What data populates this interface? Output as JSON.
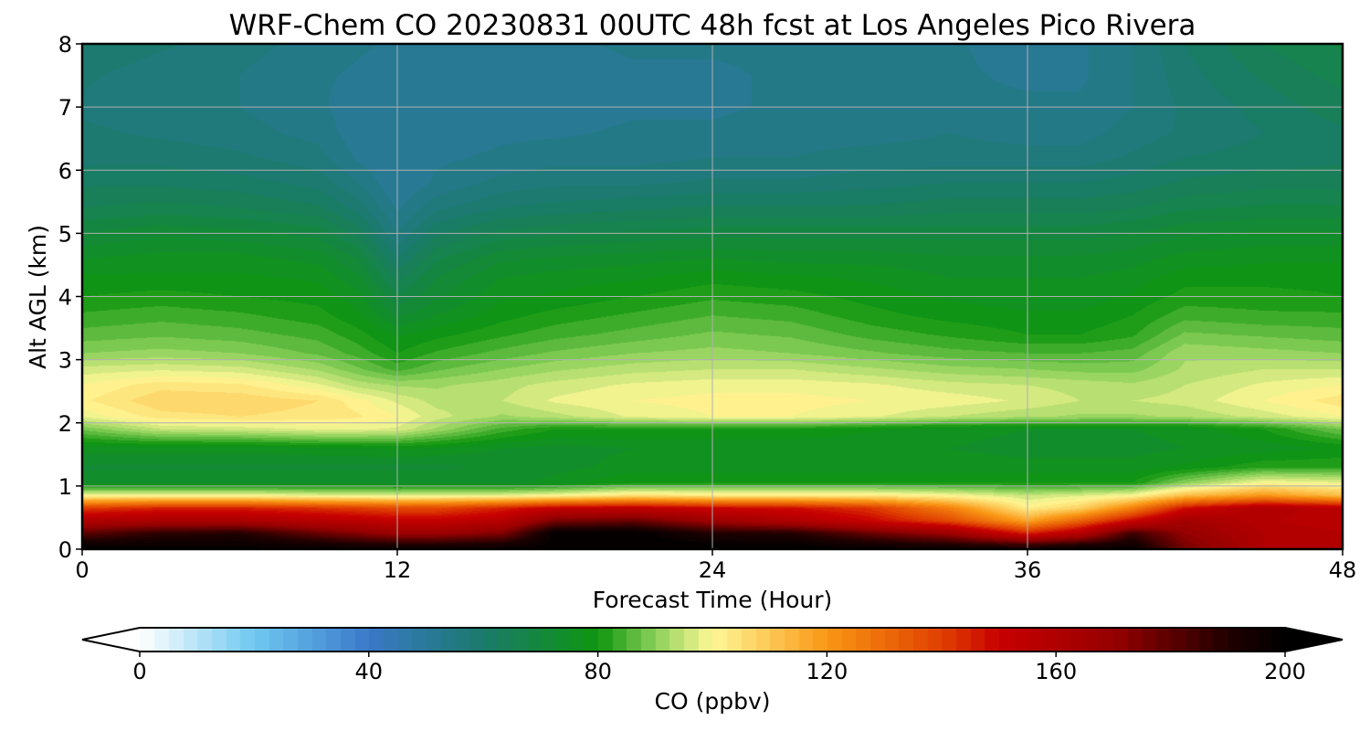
{
  "chart_data": {
    "type": "heatmap",
    "title": "WRF-Chem CO  20230831 00UTC 48h fcst at Los Angeles Pico Rivera",
    "xlabel": "Forecast Time (Hour)",
    "ylabel": "Alt AGL (km)",
    "xlim": [
      0,
      48
    ],
    "ylim": [
      0,
      8
    ],
    "xticks": [
      "0",
      "12",
      "24",
      "36",
      "48"
    ],
    "yticks": [
      "0",
      "1",
      "2",
      "3",
      "4",
      "5",
      "6",
      "7",
      "8"
    ],
    "grid": true,
    "colorbar": {
      "label": "CO  (ppbv)",
      "range": [
        0,
        200
      ],
      "ticks": [
        "0",
        "40",
        "80",
        "120",
        "160",
        "200"
      ],
      "extend": "both",
      "colors": {
        "0": "#ffffff",
        "20": "#6ec8f0",
        "40": "#3a78c8",
        "60": "#1a7a6a",
        "80": "#0f960f",
        "90": "#8cd05a",
        "100": "#fff896",
        "120": "#fa9614",
        "140": "#e04000",
        "150": "#c80000",
        "170": "#960000",
        "190": "#200000",
        "200": "#000000"
      }
    },
    "x_hours": [
      0,
      3,
      6,
      9,
      10.5,
      12,
      13.5,
      16,
      18,
      21,
      24,
      27,
      30,
      33,
      36,
      38,
      40,
      42,
      45,
      48
    ],
    "alt_km": [
      0.05,
      0.25,
      0.45,
      0.65,
      0.85,
      1.05,
      1.3,
      1.6,
      1.9,
      2.1,
      2.35,
      2.6,
      2.85,
      3.1,
      3.4,
      3.7,
      4.0,
      4.3,
      4.6,
      5.0,
      5.4,
      5.8,
      6.2,
      6.6,
      7.0,
      7.5,
      8.0
    ],
    "co_ppbv": [
      [
        198,
        198,
        198,
        196,
        194,
        193,
        193,
        195,
        199,
        200,
        200,
        199,
        196,
        193,
        189,
        193,
        196,
        175,
        160,
        158
      ],
      [
        180,
        188,
        190,
        178,
        173,
        168,
        168,
        174,
        199,
        200,
        190,
        190,
        178,
        168,
        145,
        158,
        185,
        170,
        160,
        158
      ],
      [
        160,
        162,
        162,
        157,
        155,
        152,
        152,
        157,
        175,
        178,
        167,
        160,
        150,
        138,
        117,
        132,
        150,
        165,
        158,
        155
      ],
      [
        140,
        145,
        145,
        142,
        140,
        138,
        138,
        145,
        152,
        154,
        150,
        148,
        142,
        125,
        102,
        108,
        125,
        148,
        160,
        155
      ],
      [
        100,
        100,
        100,
        98,
        98,
        97,
        98,
        98,
        100,
        105,
        103,
        103,
        103,
        100,
        95,
        97,
        100,
        112,
        120,
        112
      ],
      [
        74,
        74,
        74,
        74,
        74,
        74,
        74,
        74,
        76,
        80,
        80,
        80,
        80,
        80,
        80,
        80,
        80,
        90,
        100,
        98
      ],
      [
        72,
        72,
        72,
        72,
        72,
        72,
        72,
        73,
        74,
        76,
        76,
        76,
        76,
        76,
        76,
        76,
        76,
        78,
        82,
        82
      ],
      [
        76,
        76,
        76,
        77,
        77,
        78,
        77,
        75,
        74,
        75,
        75,
        75,
        75,
        75,
        74,
        74,
        74,
        75,
        76,
        78
      ],
      [
        88,
        95,
        96,
        98,
        98,
        97,
        92,
        84,
        80,
        80,
        80,
        80,
        78,
        76,
        75,
        75,
        75,
        76,
        80,
        88
      ],
      [
        98,
        104,
        105,
        104,
        103,
        100,
        96,
        92,
        94,
        98,
        100,
        100,
        98,
        95,
        93,
        92,
        92,
        93,
        96,
        100
      ],
      [
        102,
        107,
        107,
        105,
        101,
        97,
        94,
        95,
        98,
        100,
        101,
        101,
        100,
        99,
        97,
        95,
        95,
        96,
        100,
        104
      ],
      [
        100,
        104,
        103,
        98,
        94,
        92,
        92,
        94,
        96,
        98,
        99,
        99,
        98,
        96,
        95,
        94,
        93,
        95,
        98,
        100
      ],
      [
        96,
        97,
        96,
        92,
        88,
        84,
        87,
        90,
        92,
        94,
        95,
        95,
        93,
        91,
        90,
        89,
        89,
        93,
        95,
        95
      ],
      [
        90,
        91,
        90,
        87,
        84,
        80,
        83,
        86,
        88,
        90,
        91,
        90,
        88,
        86,
        85,
        85,
        86,
        92,
        91,
        90
      ],
      [
        86,
        87,
        86,
        84,
        81,
        77,
        79,
        82,
        84,
        86,
        88,
        87,
        84,
        82,
        80,
        80,
        82,
        88,
        87,
        86
      ],
      [
        83,
        84,
        83,
        81,
        78,
        72,
        75,
        79,
        81,
        83,
        85,
        84,
        81,
        79,
        78,
        78,
        80,
        84,
        83,
        83
      ],
      [
        80,
        81,
        80,
        79,
        76,
        68,
        72,
        77,
        78,
        80,
        82,
        81,
        79,
        77,
        76,
        76,
        78,
        81,
        81,
        80
      ],
      [
        78,
        78,
        78,
        77,
        73,
        64,
        70,
        75,
        76,
        77,
        79,
        78,
        77,
        75,
        75,
        75,
        76,
        79,
        79,
        79
      ],
      [
        75,
        76,
        76,
        74,
        70,
        60,
        67,
        72,
        73,
        74,
        75,
        74,
        74,
        73,
        73,
        73,
        74,
        76,
        77,
        77
      ],
      [
        70,
        72,
        71,
        69,
        64,
        55,
        62,
        66,
        67,
        68,
        69,
        69,
        69,
        69,
        69,
        69,
        70,
        72,
        73,
        73
      ],
      [
        65,
        66,
        65,
        63,
        59,
        52,
        57,
        60,
        61,
        62,
        63,
        63,
        63,
        64,
        64,
        64,
        65,
        67,
        68,
        68
      ],
      [
        62,
        62,
        61,
        59,
        55,
        50,
        53,
        56,
        57,
        57,
        58,
        58,
        59,
        60,
        60,
        60,
        61,
        63,
        64,
        64
      ],
      [
        59,
        59,
        58,
        56,
        52,
        50,
        52,
        53,
        54,
        54,
        55,
        55,
        56,
        56,
        56,
        56,
        58,
        60,
        61,
        62
      ],
      [
        58,
        57,
        56,
        54,
        51,
        50,
        51,
        52,
        52,
        53,
        53,
        54,
        54,
        55,
        54,
        54,
        56,
        58,
        60,
        62
      ],
      [
        57,
        56,
        55,
        53,
        51,
        50,
        51,
        51,
        51,
        52,
        52,
        53,
        53,
        53,
        53,
        53,
        55,
        58,
        61,
        64
      ],
      [
        58,
        56,
        55,
        53,
        52,
        51,
        51,
        51,
        51,
        52,
        52,
        53,
        53,
        53,
        52,
        52,
        55,
        59,
        63,
        66
      ],
      [
        60,
        58,
        56,
        54,
        53,
        52,
        52,
        52,
        52,
        53,
        53,
        53,
        53,
        53,
        51,
        52,
        55,
        60,
        65,
        68
      ]
    ]
  }
}
